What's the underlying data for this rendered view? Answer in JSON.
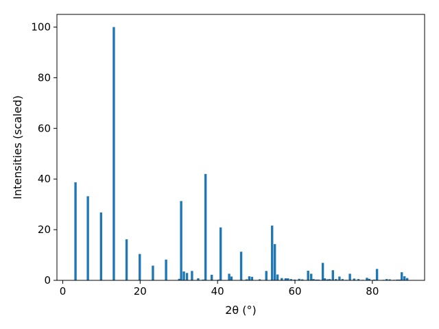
{
  "chart_data": {
    "type": "bar",
    "title": "",
    "xlabel": "2θ (°)",
    "ylabel": "Intensities (scaled)",
    "xlim": [
      -1.5,
      93.5
    ],
    "ylim": [
      0,
      105
    ],
    "bar_width": 0.6,
    "xticks": [
      0,
      20,
      40,
      60,
      80
    ],
    "yticks": [
      0,
      20,
      40,
      60,
      80,
      100
    ],
    "grid": false,
    "legend": "none",
    "color": "#1f77b4",
    "series": [
      {
        "x": [
          3.3,
          6.5,
          9.9,
          13.2,
          16.5,
          19.9,
          23.3,
          26.7,
          30.1,
          30.6,
          31.3,
          32.1,
          33.4,
          35.0,
          36.3,
          36.9,
          38.5,
          40.3,
          40.8,
          43.0,
          43.6,
          46.1,
          47.5,
          48.2,
          48.9,
          50.9,
          52.6,
          54.1,
          54.8,
          55.5,
          56.6,
          57.6,
          58.2,
          59.0,
          59.9,
          61.1,
          61.9,
          63.4,
          64.2,
          64.8,
          65.5,
          66.1,
          67.2,
          67.7,
          68.4,
          69.0,
          69.8,
          70.6,
          71.5,
          72.3,
          73.3,
          74.2,
          75.3,
          76.4,
          77.5,
          78.6,
          79.2,
          80.5,
          81.2,
          82.9,
          83.7,
          84.5,
          85.6,
          86.4,
          87.0,
          87.6,
          88.3,
          89.0
        ],
        "values": [
          38.7,
          33.2,
          26.8,
          100.0,
          16.2,
          10.4,
          5.8,
          8.2,
          0.6,
          31.3,
          3.5,
          2.9,
          3.7,
          0.8,
          0.3,
          42.0,
          2.2,
          0.3,
          20.9,
          2.6,
          1.5,
          11.3,
          0.4,
          1.6,
          1.4,
          0.4,
          3.7,
          21.6,
          14.3,
          2.3,
          0.9,
          0.8,
          0.8,
          0.5,
          0.3,
          0.6,
          0.4,
          3.8,
          2.6,
          0.5,
          0.3,
          0.3,
          6.9,
          0.8,
          0.4,
          0.5,
          4.0,
          0.5,
          1.5,
          0.5,
          0.2,
          2.6,
          0.7,
          0.5,
          0.2,
          1.0,
          0.6,
          0.3,
          4.5,
          0.2,
          0.5,
          0.4,
          0.2,
          0.3,
          0.3,
          3.2,
          1.6,
          0.9
        ]
      }
    ]
  }
}
